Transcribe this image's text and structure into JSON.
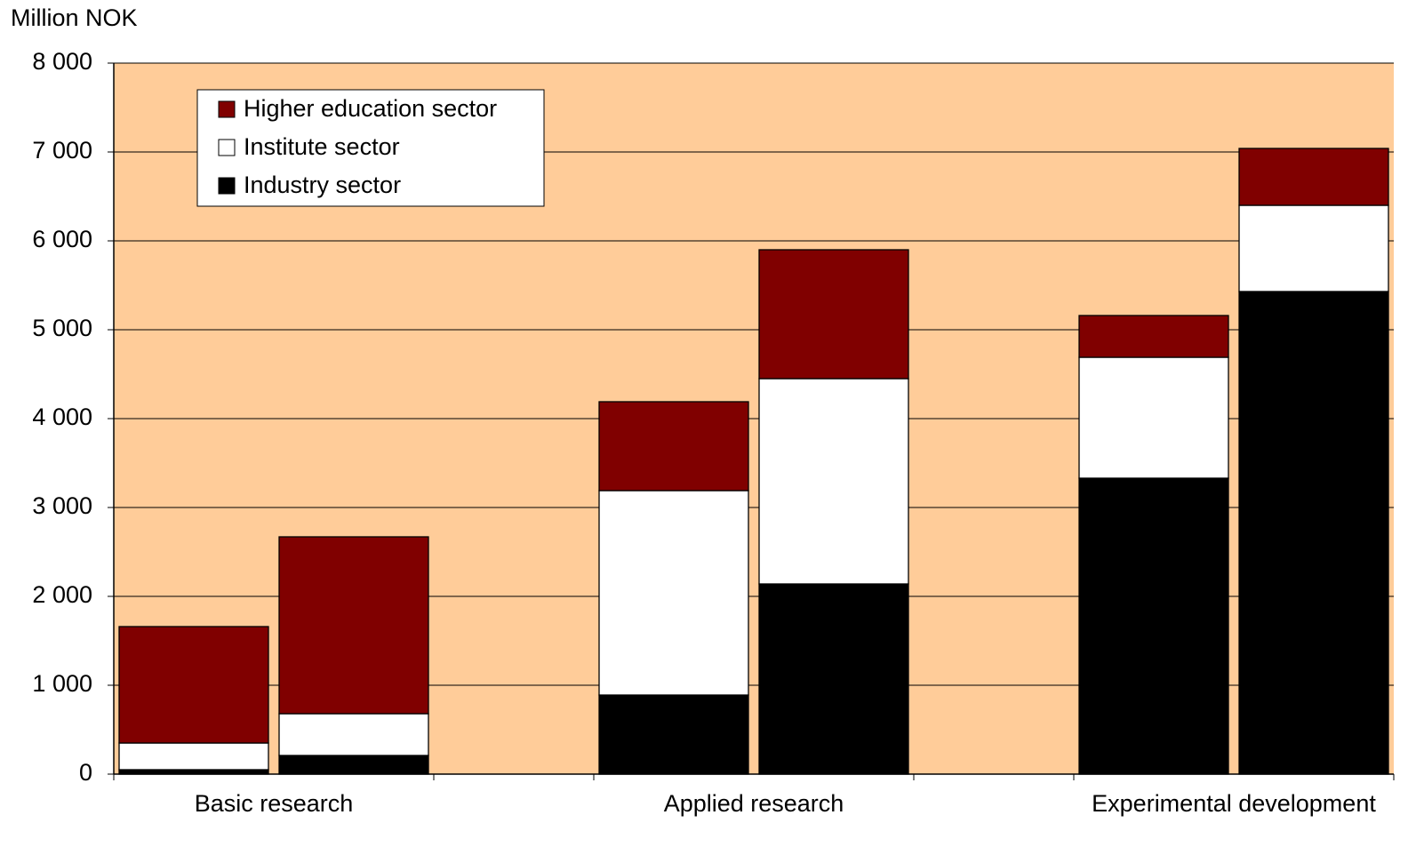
{
  "chart_data": {
    "type": "stacked_bar",
    "y_axis_label": "Million NOK",
    "categories": [
      "Basic research",
      null,
      "Applied research",
      null,
      "Experimental development",
      null
    ],
    "series": [
      {
        "name": "Industry sector",
        "color": "#000000",
        "values": [
          50,
          210,
          890,
          2140,
          3330,
          5430
        ]
      },
      {
        "name": "Institute sector",
        "color": "#ffffff",
        "values": [
          300,
          470,
          2300,
          2310,
          1360,
          970
        ]
      },
      {
        "name": "Higher education sector",
        "color": "#800000",
        "values": [
          1310,
          1990,
          1000,
          1450,
          470,
          640
        ]
      }
    ],
    "ylim": [
      0,
      8000
    ],
    "yticks": [
      0,
      {
        "value": 1000,
        "label": "1 000"
      },
      {
        "value": 2000,
        "label": "2 000"
      },
      {
        "value": 3000,
        "label": "3 000"
      },
      {
        "value": 4000,
        "label": "4 000"
      },
      {
        "value": 5000,
        "label": "5 000"
      },
      {
        "value": 6000,
        "label": "6 000"
      },
      {
        "value": 7000,
        "label": "7 000"
      },
      {
        "value": 8000,
        "label": "8 000"
      }
    ],
    "grid": true,
    "plot_background": "#ffcc99",
    "legend": "upper left"
  }
}
